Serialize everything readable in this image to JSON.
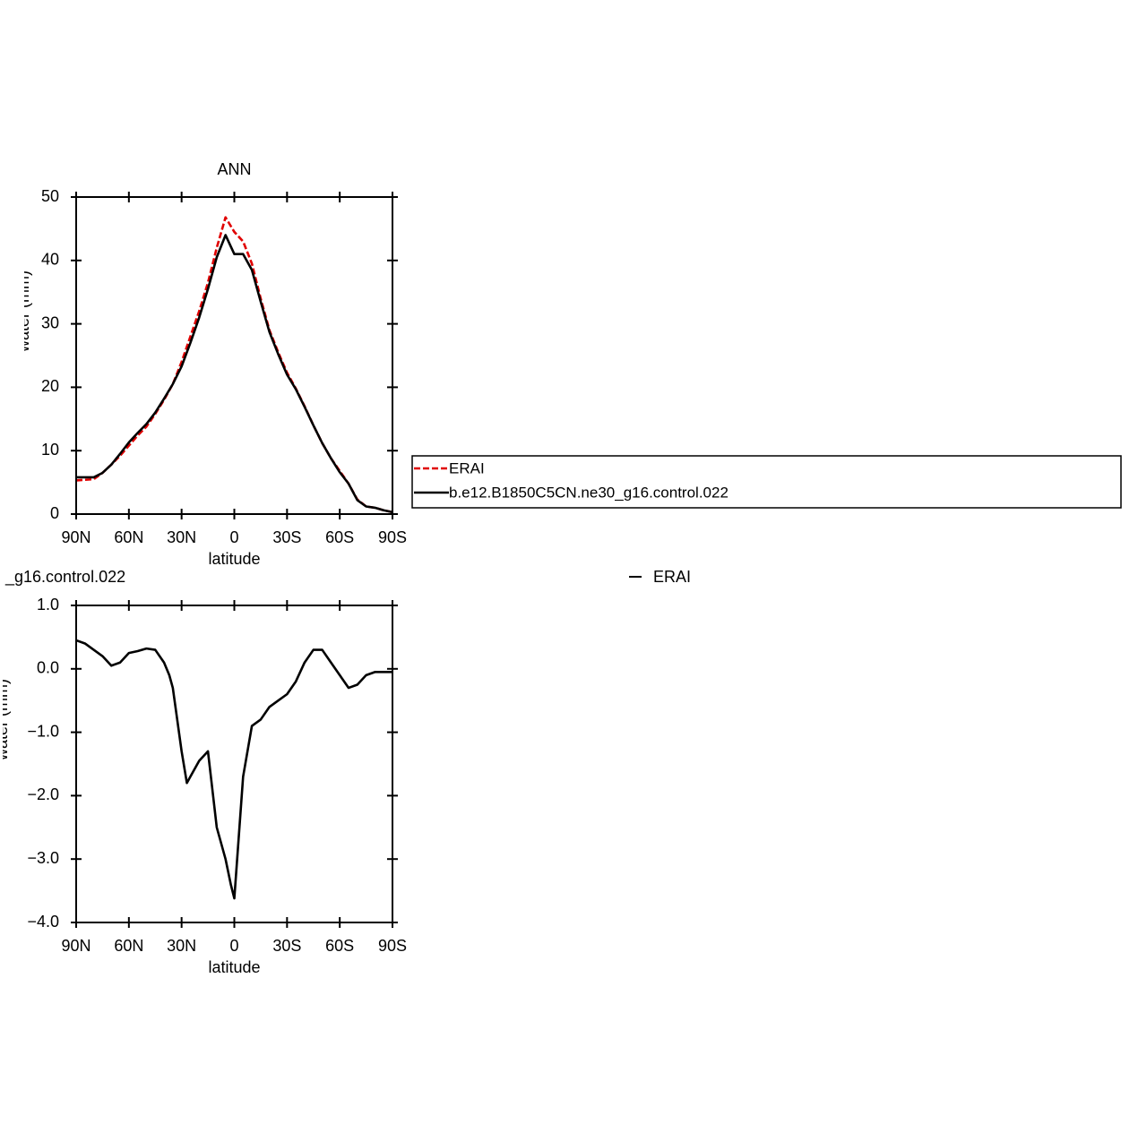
{
  "chart_data": [
    {
      "type": "line",
      "title": "ANN",
      "x_label": "latitude",
      "y_label": "Precipitable water (mm)",
      "x": [
        90,
        85,
        80,
        75,
        70,
        65,
        60,
        55,
        50,
        45,
        40,
        35,
        30,
        25,
        20,
        15,
        10,
        5,
        0,
        -5,
        -10,
        -15,
        -20,
        -25,
        -30,
        -35,
        -40,
        -45,
        -50,
        -55,
        -60,
        -65,
        -70,
        -75,
        -80,
        -85,
        -90
      ],
      "xlim": [
        90,
        -90
      ],
      "xticks": [
        {
          "value": 90,
          "label": "90N"
        },
        {
          "value": 60,
          "label": "60N"
        },
        {
          "value": 30,
          "label": "30N"
        },
        0,
        {
          "value": -30,
          "label": "30S"
        },
        {
          "value": -60,
          "label": "60S"
        },
        {
          "value": -90,
          "label": "90S"
        }
      ],
      "ylim": [
        0,
        50
      ],
      "yticks": [
        0,
        10,
        20,
        30,
        40,
        50
      ],
      "legend": "right",
      "series": [
        {
          "name": "ERAI",
          "color": "#e00000",
          "dash": "dashed",
          "values": [
            5.3,
            5.4,
            5.5,
            6.5,
            7.8,
            9.2,
            10.8,
            12.4,
            13.8,
            15.8,
            18.0,
            20.5,
            24.0,
            28.0,
            32.0,
            36.5,
            42.0,
            46.8,
            44.5,
            43.0,
            39.5,
            34.0,
            29.0,
            25.5,
            22.3,
            19.8,
            17.0,
            14.0,
            11.2,
            8.8,
            6.8,
            4.8,
            2.3,
            1.2,
            1.0,
            0.6,
            0.3
          ]
        },
        {
          "name": "b.e12.B1850C5CN.ne30_g16.control.022",
          "color": "#000000",
          "dash": "solid",
          "values": [
            5.8,
            5.8,
            5.8,
            6.5,
            7.8,
            9.5,
            11.3,
            12.8,
            14.2,
            16.0,
            18.2,
            20.5,
            23.3,
            27.0,
            31.0,
            35.5,
            40.5,
            44.0,
            41.0,
            41.0,
            38.5,
            33.5,
            28.7,
            25.2,
            22.0,
            19.7,
            16.9,
            14.0,
            11.2,
            8.8,
            6.6,
            4.8,
            2.2,
            1.2,
            1.0,
            0.6,
            0.3
          ]
        }
      ]
    },
    {
      "type": "line",
      "title": "_g16.control.022",
      "subtitle": "ERAI",
      "x_label": "latitude",
      "y_label": "Precipitable water (mm)",
      "x": [
        90,
        85,
        80,
        75,
        70,
        65,
        60,
        55,
        50,
        45,
        40,
        37,
        35,
        30,
        27,
        25,
        20,
        15,
        10,
        5,
        2,
        0,
        -5,
        -10,
        -15,
        -20,
        -25,
        -30,
        -35,
        -40,
        -45,
        -50,
        -55,
        -60,
        -65,
        -70,
        -75,
        -80,
        -85,
        -90
      ],
      "xlim": [
        90,
        -90
      ],
      "xticks": [
        {
          "value": 90,
          "label": "90N"
        },
        {
          "value": 60,
          "label": "60N"
        },
        {
          "value": 30,
          "label": "30N"
        },
        0,
        {
          "value": -30,
          "label": "30S"
        },
        {
          "value": -60,
          "label": "60S"
        },
        {
          "value": -90,
          "label": "90S"
        }
      ],
      "ylim": [
        -4,
        1
      ],
      "yticks": [
        {
          "value": 1,
          "label": "1.0"
        },
        {
          "value": 0,
          "label": "0.0"
        },
        {
          "value": -1,
          "label": "−1.0"
        },
        {
          "value": -2,
          "label": "−2.0"
        },
        {
          "value": -3,
          "label": "−3.0"
        },
        {
          "value": -4,
          "label": "−4.0"
        }
      ],
      "series": [
        {
          "color": "#000000",
          "dash": "solid",
          "values": [
            0.45,
            0.4,
            0.3,
            0.2,
            0.05,
            0.1,
            0.25,
            0.28,
            0.32,
            0.3,
            0.1,
            -0.1,
            -0.3,
            -1.3,
            -1.8,
            -1.7,
            -1.45,
            -1.3,
            -2.5,
            -3.0,
            -3.4,
            -3.62,
            -1.7,
            -0.9,
            -0.8,
            -0.6,
            -0.5,
            -0.4,
            -0.2,
            0.1,
            0.3,
            0.3,
            0.1,
            -0.1,
            -0.3,
            -0.25,
            -0.1,
            -0.05,
            -0.05,
            -0.05
          ]
        }
      ]
    }
  ]
}
